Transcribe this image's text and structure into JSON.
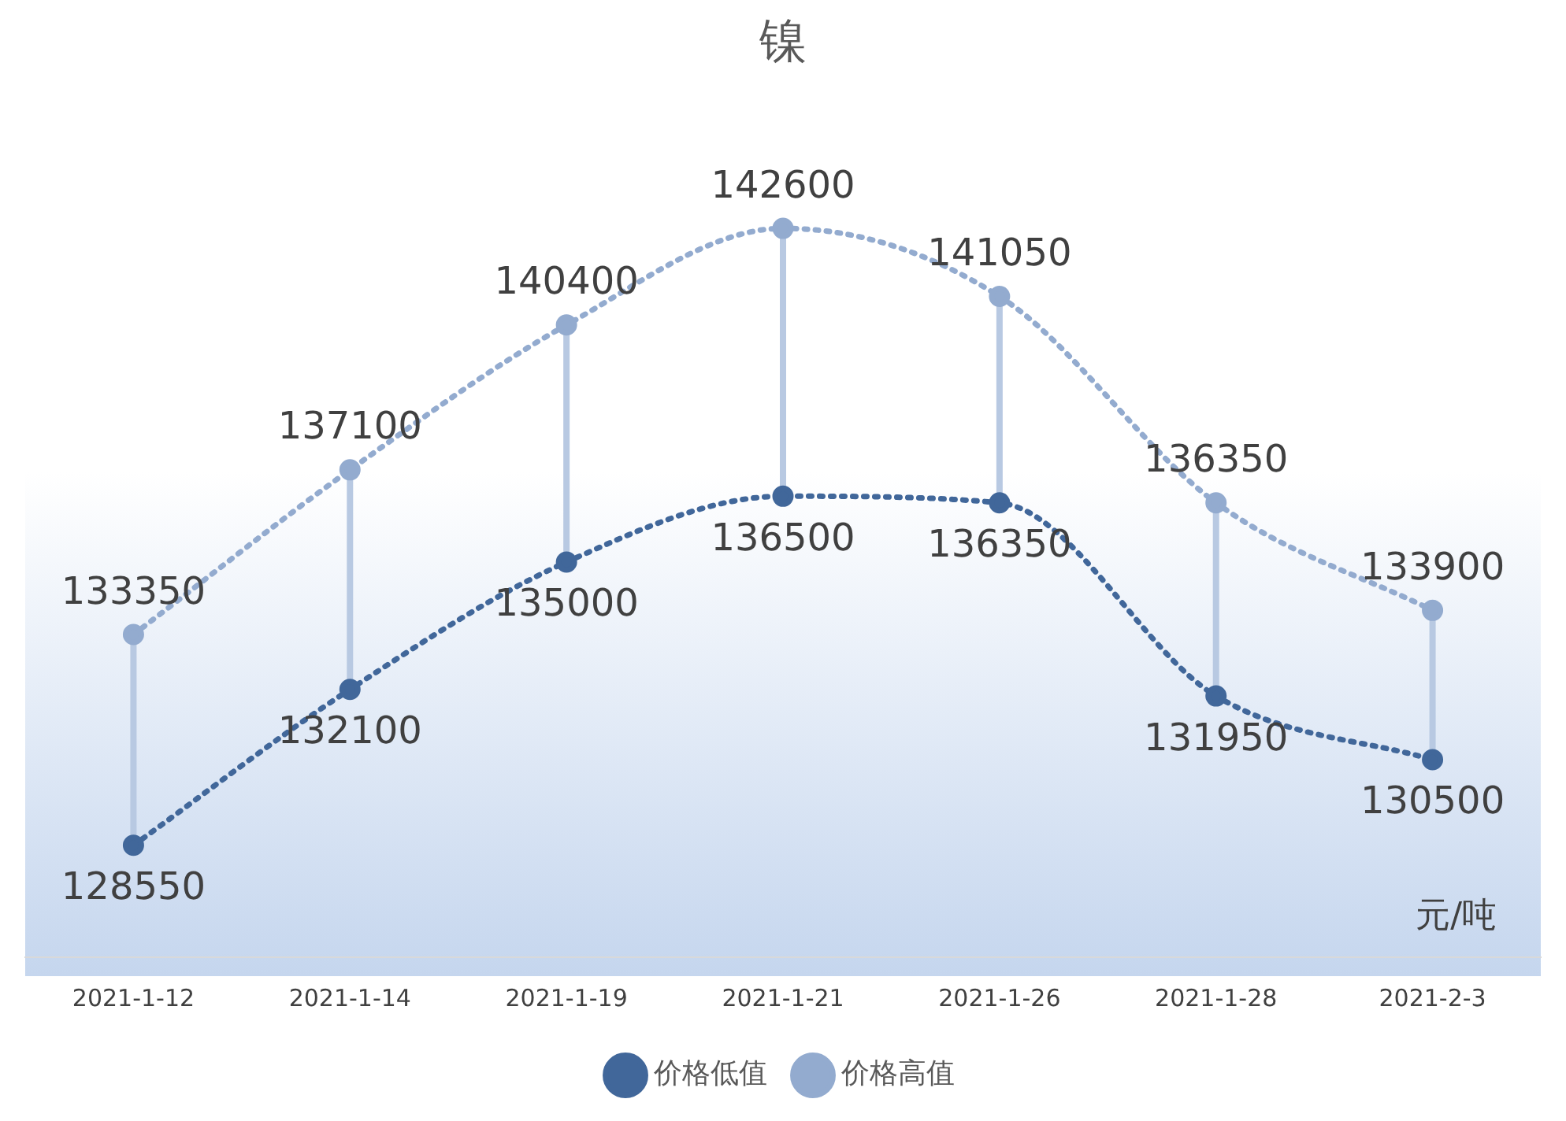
{
  "chart_data": {
    "type": "line",
    "title": "镍",
    "categories": [
      "2021-1-12",
      "2021-1-14",
      "2021-1-19",
      "2021-1-21",
      "2021-1-26",
      "2021-1-28",
      "2021-2-3"
    ],
    "series": [
      {
        "name": "价格低值",
        "color": "#41679a",
        "values": [
          128550,
          132100,
          135000,
          136500,
          136350,
          131950,
          130500
        ]
      },
      {
        "name": "价格高值",
        "color": "#93abcf",
        "values": [
          133350,
          137100,
          140400,
          142600,
          141050,
          136350,
          133900
        ]
      }
    ],
    "annotations": [
      "元/吨"
    ],
    "data_labels": true,
    "legend": "bottom",
    "marker": "circle",
    "line_style": "dotted",
    "grid": false
  }
}
